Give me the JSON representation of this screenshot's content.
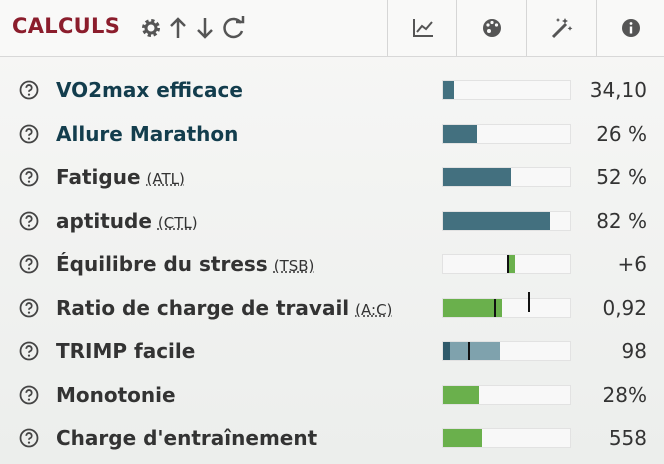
{
  "header": {
    "title": "CALCULS"
  },
  "rows": [
    {
      "label": "VO2max efficace",
      "value": "34,10"
    },
    {
      "label": "Allure Marathon",
      "value": "26 %"
    },
    {
      "label": "Fatigue",
      "abbr": "(ATL)",
      "value": "52 %"
    },
    {
      "label": "aptitude",
      "abbr": "(CTL)",
      "value": "82 %"
    },
    {
      "label": "Équilibre du stress",
      "abbr": "(TSB)",
      "value": "+6"
    },
    {
      "label": "Ratio de charge de travail",
      "abbr": "(A:C)",
      "value": "0,92"
    },
    {
      "label": "TRIMP facile",
      "value": "98"
    },
    {
      "label": "Monotonie",
      "value": "28%"
    },
    {
      "label": "Charge d'entraînement",
      "value": "558"
    }
  ]
}
